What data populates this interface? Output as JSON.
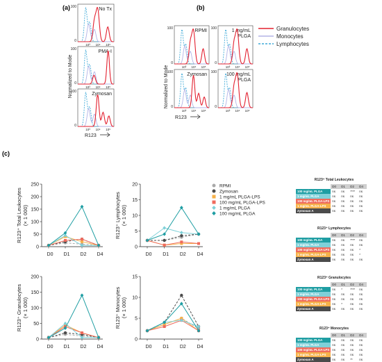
{
  "panel_labels": {
    "a": "(a)",
    "b": "(b)",
    "c": "(c)"
  },
  "histograms": {
    "a_ylabel": "Normalized to Mode",
    "a_xlabel": "R123",
    "b_ylabel": "Normalized to Mode",
    "b_xlabel": "R123",
    "y_tick": "100",
    "y_tick0": "0",
    "x_ticks": [
      "10³",
      "10⁴",
      "10⁵"
    ],
    "legend": [
      {
        "name": "Granulocytes",
        "color": "#e3202f",
        "dash": "solid"
      },
      {
        "name": "Monocytes",
        "color": "#b3b3e6",
        "dash": "solid"
      },
      {
        "name": "Lymphocytes",
        "color": "#3ea9d8",
        "dash": "dashed"
      }
    ],
    "a_panels": [
      {
        "title": "No Tx"
      },
      {
        "title": "PMA-I"
      },
      {
        "title": "Zymosan"
      }
    ],
    "b_panels": [
      {
        "title": "RPMI"
      },
      {
        "title": "1 mg/mL\nPLGA"
      },
      {
        "title": "Zymosan"
      },
      {
        "title": "100 mg/mL\nPLGA"
      }
    ]
  },
  "chart_data": [
    {
      "type": "line",
      "ylabel": "R123⁺ Total Leukocytes\n(× 1 000)",
      "ylim": [
        0,
        250
      ],
      "yticks": [
        0,
        50,
        100,
        150,
        200,
        250
      ],
      "categories": [
        "D0",
        "D1",
        "D2",
        "D4"
      ],
      "series": [
        {
          "name": "RPMI",
          "values": [
            5,
            15,
            10,
            5
          ]
        },
        {
          "name": "Zymosan",
          "values": [
            5,
            20,
            30,
            5
          ]
        },
        {
          "name": "1 mg/mL PLGA-LPS",
          "values": [
            5,
            40,
            20,
            5
          ]
        },
        {
          "name": "100 mg/mL PLGA-LPS",
          "values": [
            5,
            25,
            30,
            5
          ]
        },
        {
          "name": "1 mg/mL PLGA",
          "values": [
            5,
            45,
            5,
            5
          ]
        },
        {
          "name": "100 mg/mL PLGA",
          "values": [
            5,
            55,
            160,
            5
          ]
        }
      ]
    },
    {
      "type": "line",
      "ylabel": "R123⁺ Lymphocytes\n(× 1 000)",
      "ylim": [
        0,
        20
      ],
      "yticks": [
        0,
        5,
        10,
        15,
        20
      ],
      "categories": [
        "D0",
        "D1",
        "D2",
        "D4"
      ],
      "series": [
        {
          "name": "RPMI",
          "values": [
            2,
            2,
            3,
            4
          ]
        },
        {
          "name": "Zymosan",
          "values": [
            2,
            2,
            3.5,
            4
          ]
        },
        {
          "name": "1 mg/mL PLGA-LPS",
          "values": [
            2,
            0.5,
            1,
            1
          ]
        },
        {
          "name": "100 mg/mL PLGA-LPS",
          "values": [
            2,
            0.5,
            1.5,
            1
          ]
        },
        {
          "name": "1 mg/mL PLGA",
          "values": [
            2,
            6,
            4.5,
            4
          ]
        },
        {
          "name": "100 mg/mL PLGA",
          "values": [
            2,
            4,
            12.5,
            4
          ]
        }
      ]
    },
    {
      "type": "line",
      "ylabel": "R123⁺ Granulocytes\n(× 1 000)",
      "ylim": [
        0,
        200
      ],
      "yticks": [
        0,
        50,
        100,
        150,
        200
      ],
      "categories": [
        "D0",
        "D1",
        "D2",
        "D4"
      ],
      "series": [
        {
          "name": "RPMI",
          "values": [
            5,
            15,
            10,
            5
          ]
        },
        {
          "name": "Zymosan",
          "values": [
            5,
            20,
            15,
            5
          ]
        },
        {
          "name": "1 mg/mL PLGA-LPS",
          "values": [
            5,
            45,
            20,
            5
          ]
        },
        {
          "name": "100 mg/mL PLGA-LPS",
          "values": [
            5,
            40,
            20,
            5
          ]
        },
        {
          "name": "1 mg/mL PLGA",
          "values": [
            5,
            50,
            5,
            5
          ]
        },
        {
          "name": "100 mg/mL PLGA",
          "values": [
            5,
            35,
            140,
            5
          ]
        }
      ]
    },
    {
      "type": "line",
      "ylabel": "R123⁺ Monocytes\n(× 1 000)",
      "ylim": [
        0,
        15
      ],
      "yticks": [
        0,
        5,
        10,
        15
      ],
      "categories": [
        "D0",
        "D1",
        "D2",
        "D4"
      ],
      "series": [
        {
          "name": "RPMI",
          "values": [
            2,
            3.5,
            5,
            2.5
          ]
        },
        {
          "name": "Zymosan",
          "values": [
            2,
            4,
            10.5,
            3
          ]
        },
        {
          "name": "1 mg/mL PLGA-LPS",
          "values": [
            2,
            3.5,
            5,
            2
          ]
        },
        {
          "name": "100 mg/mL PLGA-LPS",
          "values": [
            2,
            3,
            4.5,
            2
          ]
        },
        {
          "name": "1 mg/mL PLGA",
          "values": [
            2,
            4,
            4.5,
            3
          ]
        },
        {
          "name": "100 mg/mL PLGA",
          "values": [
            2,
            4,
            8.5,
            2
          ]
        }
      ]
    }
  ],
  "series_styles": [
    {
      "name": "RPMI",
      "color": "#a9a9a9",
      "marker": "circle",
      "dash": "dashed"
    },
    {
      "name": "Zymosan",
      "color": "#4b4b4b",
      "marker": "circle",
      "dash": "dashed"
    },
    {
      "name": "1 mg/mL PLGA-LPS",
      "color": "#f6b14a",
      "marker": "square",
      "dash": "solid"
    },
    {
      "name": "100 mg/mL PLGA-LPS",
      "color": "#ef6b5c",
      "marker": "square",
      "dash": "solid"
    },
    {
      "name": "1 mg/mL PLGA",
      "color": "#7fd0d8",
      "marker": "diamond",
      "dash": "solid"
    },
    {
      "name": "100 mg/mL PLGA",
      "color": "#1f9ea3",
      "marker": "diamond",
      "dash": "solid"
    }
  ],
  "stats": {
    "days": [
      "D0",
      "D1",
      "D2",
      "D4"
    ],
    "row_labels": [
      {
        "label": "100 mg/mL PLGA",
        "color": "#1f9ea3"
      },
      {
        "label": "1 mg/mL PLGA",
        "color": "#7fd0d8"
      },
      {
        "label": "100 mg/mL PLGA-LPS",
        "color": "#ef6b5c"
      },
      {
        "label": "1 mg/mL PLGA-LPS",
        "color": "#f6b14a"
      },
      {
        "label": "Zymosan A",
        "color": "#4b4b4b"
      }
    ],
    "tables": [
      {
        "title": "R123⁺ Total Leukocytes",
        "rows": [
          [
            "ns",
            "ns",
            "****",
            "ns"
          ],
          [
            "ns",
            "ns",
            "ns",
            "ns"
          ],
          [
            "ns",
            "ns",
            "ns",
            "ns"
          ],
          [
            "ns",
            "ns",
            "ns",
            "ns"
          ],
          [
            "ns",
            "ns",
            "ns",
            "ns"
          ]
        ]
      },
      {
        "title": "R123⁺ Lymphocytes",
        "rows": [
          [
            "ns",
            "ns",
            "****",
            "ns"
          ],
          [
            "ns",
            "ns",
            "ns",
            "ns"
          ],
          [
            "ns",
            "ns",
            "ns",
            "*"
          ],
          [
            "ns",
            "ns",
            "ns",
            "*"
          ],
          [
            "ns",
            "ns",
            "ns",
            "ns"
          ]
        ]
      },
      {
        "title": "R123⁺ Granulocytes",
        "rows": [
          [
            "ns",
            "*",
            "****",
            "ns"
          ],
          [
            "ns",
            "ns",
            "ns",
            "ns"
          ],
          [
            "ns",
            "ns",
            "ns",
            "ns"
          ],
          [
            "ns",
            "*",
            "ns",
            "ns"
          ],
          [
            "ns",
            "ns",
            "ns",
            "ns"
          ]
        ]
      },
      {
        "title": "R123⁺ Monocytes",
        "rows": [
          [
            "ns",
            "ns",
            "ns",
            "ns"
          ],
          [
            "ns",
            "ns",
            "ns",
            "ns"
          ],
          [
            "ns",
            "ns",
            "ns",
            "ns"
          ],
          [
            "ns",
            "ns",
            "ns",
            "ns"
          ],
          [
            "ns",
            "ns",
            "**",
            "ns"
          ]
        ]
      }
    ]
  }
}
